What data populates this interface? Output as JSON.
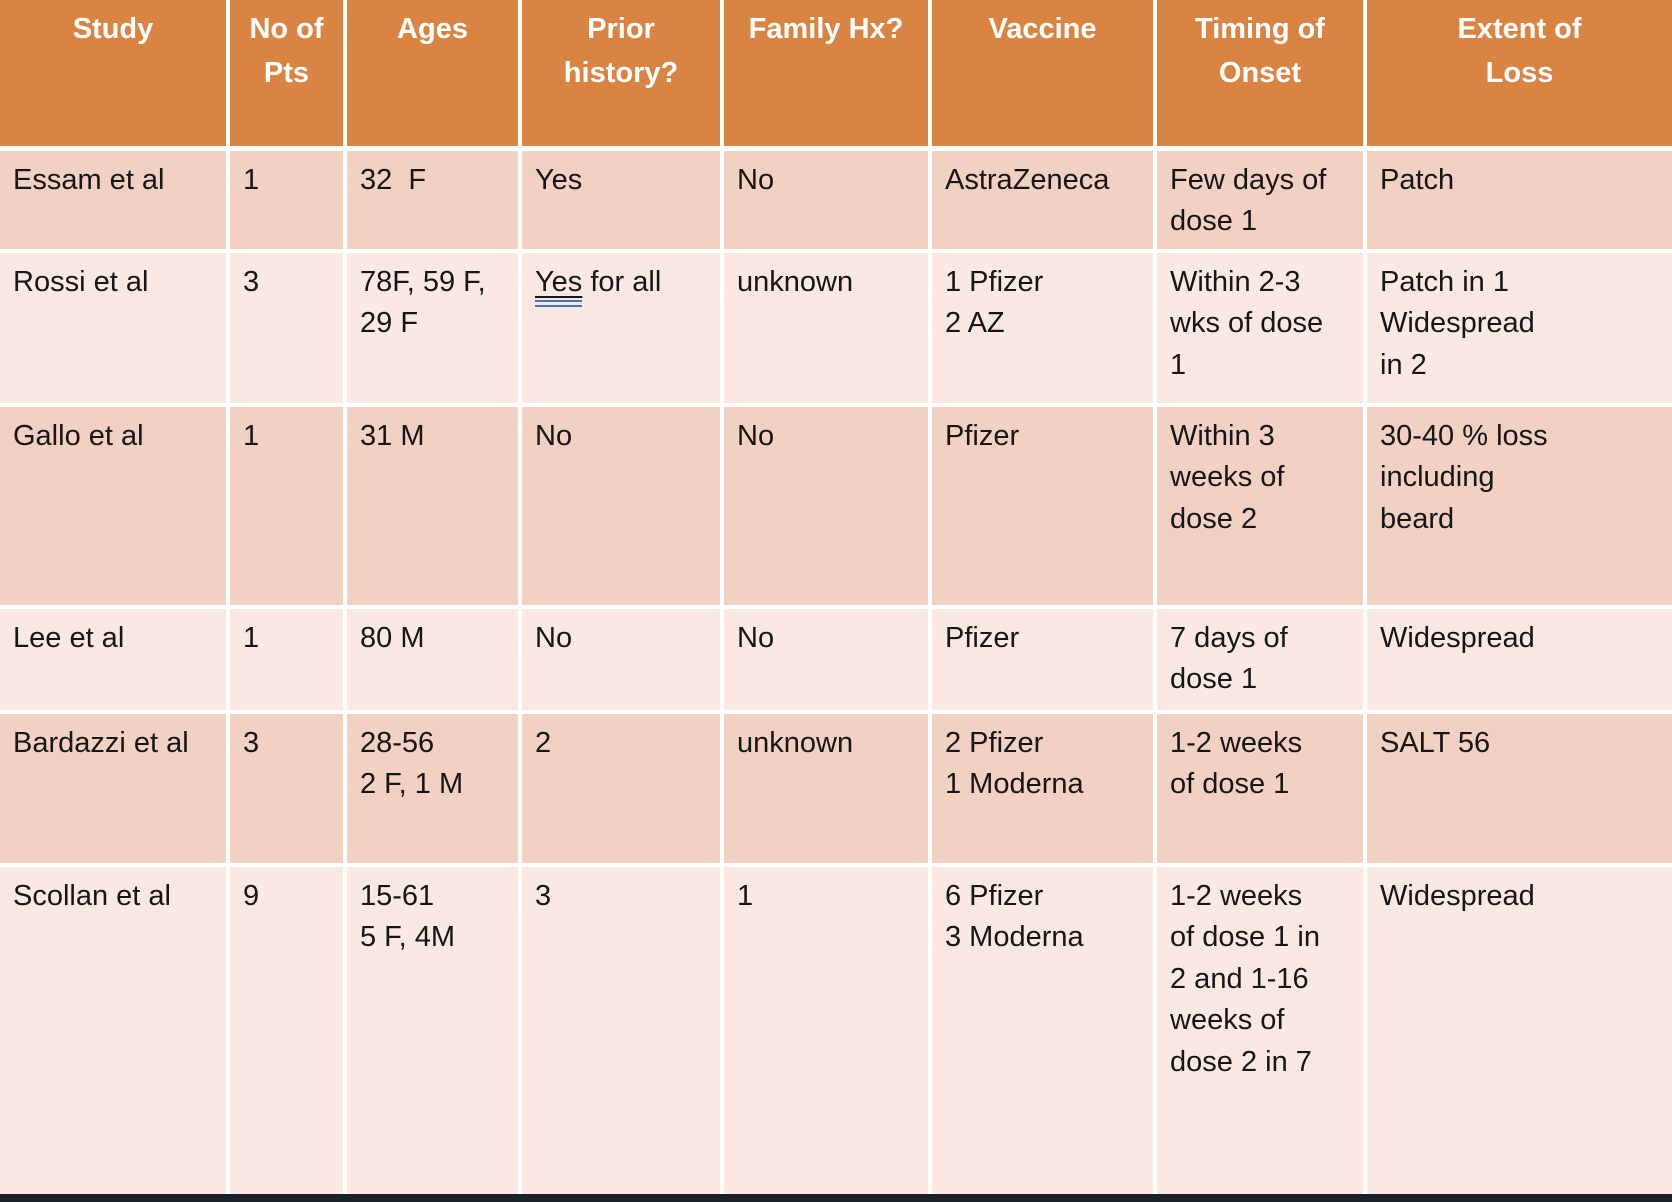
{
  "slide": {
    "colors": {
      "header_bg": "#D98442",
      "header_text": "#FFFFFF",
      "row_band_dark": "#F2D0C2",
      "row_band_light": "#FAE9E3",
      "gridline": "#FFFFFF",
      "body_text": "#161616",
      "grammar_underline_blue": "#4472C4",
      "bottom_bar": "#1C222C"
    },
    "table": {
      "columns": [
        {
          "label": "Study"
        },
        {
          "label": "No of\nPts"
        },
        {
          "label": "Ages"
        },
        {
          "label": "Prior\nhistory?"
        },
        {
          "label": "Family Hx?"
        },
        {
          "label": "Vaccine"
        },
        {
          "label": "Timing of\nOnset"
        },
        {
          "label": "Extent of\nLoss"
        }
      ],
      "rows": [
        {
          "cells": [
            "Essam et al",
            "1",
            "32  F",
            "Yes",
            "No",
            "AstraZeneca",
            "Few days of\ndose 1",
            "Patch"
          ]
        },
        {
          "cells": [
            "Rossi et al",
            "3",
            "78F, 59 F,\n29 F",
            "Yes for all",
            "unknown",
            "1 Pfizer\n2 AZ",
            "Within 2-3\nwks of dose\n1",
            "Patch in 1\nWidespread\nin 2"
          ],
          "prior_history": {
            "underlined_text": "Yes",
            "rest_text": " for all"
          }
        },
        {
          "cells": [
            "Gallo et al",
            "1",
            "31 M",
            "No",
            "No",
            "Pfizer",
            "Within 3\nweeks of\ndose 2",
            "30-40 % loss\nincluding\nbeard"
          ]
        },
        {
          "cells": [
            "Lee et al",
            "1",
            "80 M",
            "No",
            "No",
            "Pfizer",
            "7 days of\ndose 1",
            "Widespread"
          ]
        },
        {
          "cells": [
            "Bardazzi et al",
            "3",
            "28-56\n2 F, 1 M",
            "2",
            "unknown",
            "2 Pfizer\n1 Moderna",
            "1-2 weeks\nof dose 1",
            "SALT 56"
          ]
        },
        {
          "cells": [
            "Scollan et al",
            "9",
            "15-61\n5 F, 4M",
            "3",
            "1",
            "6 Pfizer\n3 Moderna",
            "1-2 weeks\nof dose 1 in\n2 and 1-16\nweeks of\ndose 2 in 7",
            "Widespread"
          ]
        }
      ]
    }
  }
}
